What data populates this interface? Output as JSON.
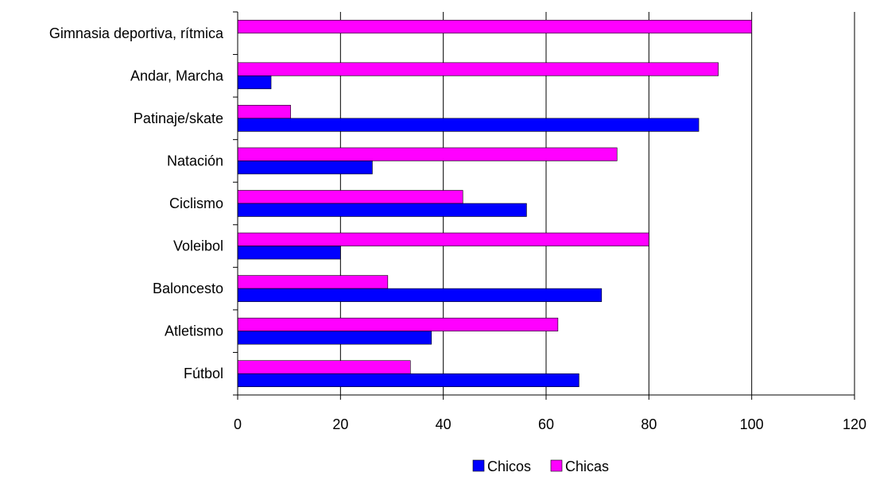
{
  "chart_data": {
    "type": "bar",
    "orientation": "horizontal",
    "categories": [
      "Gimnasia deportiva, rítmica",
      "Andar, Marcha",
      "Patinaje/skate",
      "Natación",
      "Ciclismo",
      "Voleibol",
      "Baloncesto",
      "Atletismo",
      "Fútbol"
    ],
    "series": [
      {
        "name": "Chicos",
        "color": "#0000ff",
        "values": [
          0,
          6.5,
          89.7,
          26.2,
          56.2,
          20,
          70.8,
          37.7,
          66.4
        ]
      },
      {
        "name": "Chicas",
        "color": "#ff00ff",
        "values": [
          100,
          93.5,
          10.3,
          73.8,
          43.8,
          80,
          29.2,
          62.3,
          33.6
        ]
      }
    ],
    "xlim": [
      0,
      120
    ],
    "xticks": [
      "0",
      "20",
      "40",
      "60",
      "80",
      "100",
      "120"
    ],
    "grid": "vertical",
    "legend_position": "bottom"
  }
}
